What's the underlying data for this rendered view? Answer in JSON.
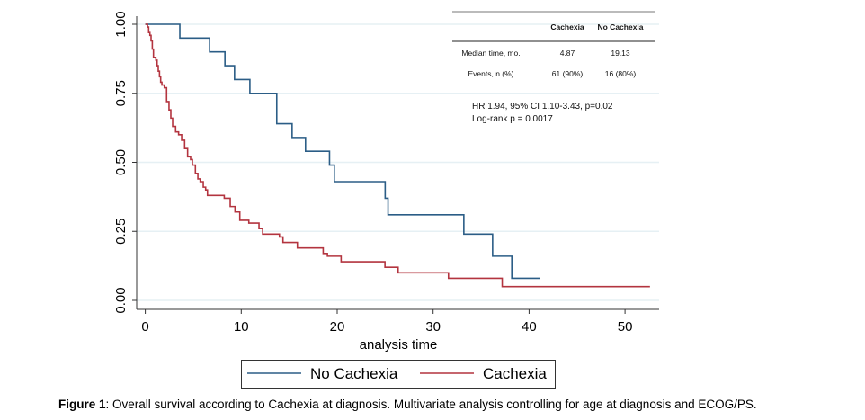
{
  "chart_data": {
    "type": "line",
    "subtype": "kaplan-meier step",
    "xlabel": "analysis time",
    "ylabel": "",
    "xlim": [
      0,
      53
    ],
    "ylim": [
      0,
      1
    ],
    "x_ticks": [
      "0",
      "10",
      "20",
      "30",
      "40",
      "50"
    ],
    "x_tick_values": [
      0,
      10,
      20,
      30,
      40,
      50
    ],
    "y_ticks": [
      "0.00",
      "0.25",
      "0.50",
      "0.75",
      "1.00"
    ],
    "y_tick_values": [
      0,
      0.25,
      0.5,
      0.75,
      1.0
    ],
    "grid": "horizontal",
    "legend_position": "bottom",
    "series": [
      {
        "name": "No Cachexia",
        "color": "#2b5d86",
        "x": [
          0,
          3.6,
          6.7,
          8.3,
          9.3,
          10.9,
          13.7,
          15.3,
          16.7,
          19.2,
          19.7,
          25.0,
          25.3,
          33.2,
          36.2,
          38.2,
          41.1
        ],
        "y": [
          1.0,
          0.95,
          0.9,
          0.85,
          0.8,
          0.75,
          0.64,
          0.59,
          0.54,
          0.49,
          0.43,
          0.37,
          0.31,
          0.24,
          0.16,
          0.08,
          0.08
        ]
      },
      {
        "name": "Cachexia",
        "color": "#b3343f",
        "x": [
          0,
          0.23,
          0.35,
          0.48,
          0.6,
          0.73,
          0.85,
          1.1,
          1.23,
          1.35,
          1.48,
          1.6,
          1.73,
          1.98,
          2.22,
          2.47,
          2.66,
          2.85,
          3.16,
          3.47,
          3.79,
          4.1,
          4.41,
          4.72,
          4.91,
          5.22,
          5.48,
          5.72,
          6.04,
          6.29,
          6.48,
          8.23,
          8.85,
          9.35,
          9.85,
          10.79,
          11.85,
          12.23,
          13.98,
          14.35,
          15.85,
          18.54,
          18.98,
          20.41,
          24.98,
          26.35,
          31.6,
          37.2,
          52.6
        ],
        "y": [
          1.0,
          0.99,
          0.97,
          0.96,
          0.94,
          0.91,
          0.88,
          0.87,
          0.85,
          0.83,
          0.81,
          0.79,
          0.78,
          0.77,
          0.72,
          0.69,
          0.66,
          0.63,
          0.61,
          0.6,
          0.58,
          0.55,
          0.52,
          0.51,
          0.49,
          0.46,
          0.44,
          0.43,
          0.41,
          0.4,
          0.38,
          0.37,
          0.34,
          0.32,
          0.29,
          0.28,
          0.26,
          0.24,
          0.23,
          0.21,
          0.19,
          0.17,
          0.16,
          0.14,
          0.12,
          0.1,
          0.08,
          0.05,
          0.05
        ]
      }
    ],
    "inset_table": {
      "columns": [
        "",
        "Cachexia",
        "No Cachexia"
      ],
      "rows": [
        [
          "Median time, mo.",
          "4.87",
          "19.13"
        ],
        [
          "Events, n (%)",
          "61 (90%)",
          "16 (80%)"
        ]
      ]
    },
    "annotations": [
      "HR 1.94, 95% CI 1.10-3.43, p=0.02",
      "Log-rank p = 0.0017"
    ]
  },
  "caption": {
    "label": "Figure 1",
    "text": ": Overall survival according to Cachexia at diagnosis. Multivariate analysis controlling for age at diagnosis and ECOG/PS."
  }
}
